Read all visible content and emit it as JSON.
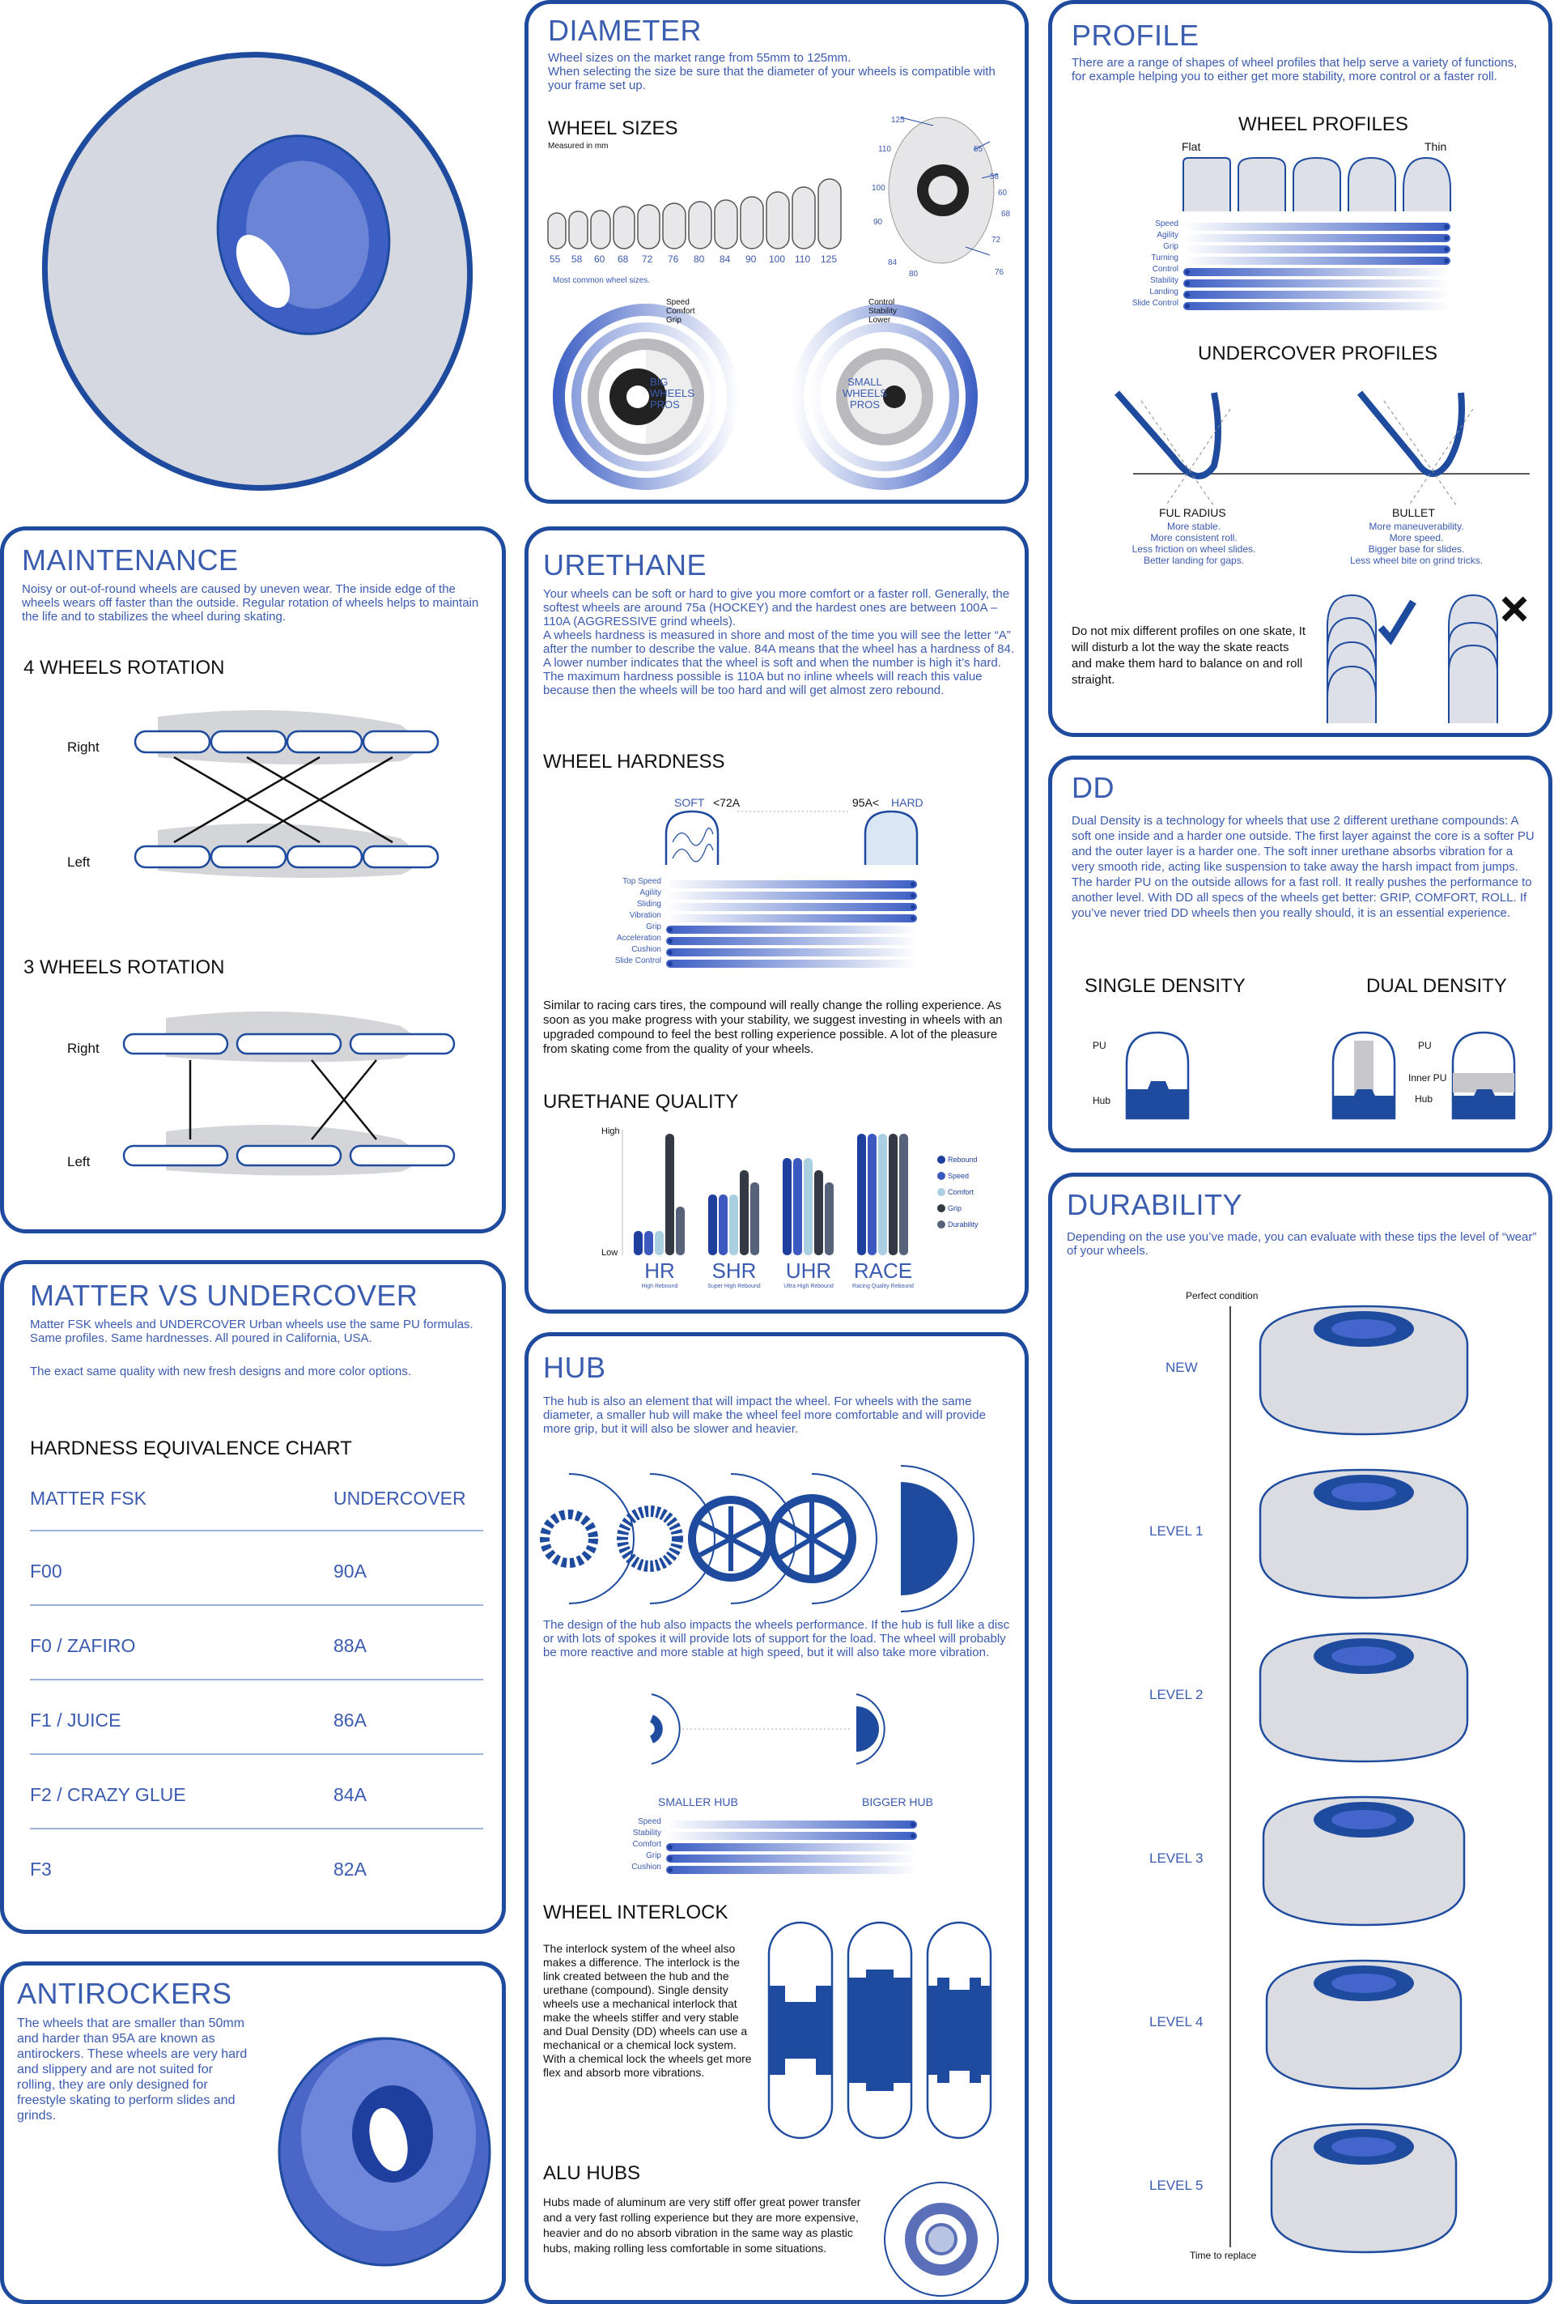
{
  "diameter": {
    "title": "DIAMETER",
    "text": "Wheel sizes on the market range from 55mm to 125mm.\nWhen selecting the size be sure that the diameter of your wheels is compatible with your frame set up.",
    "sizes_title": "WHEEL SIZES",
    "sizes_note": "Measured in mm",
    "sizes": [
      "55",
      "58",
      "60",
      "68",
      "72",
      "76",
      "80",
      "84",
      "90",
      "100",
      "110",
      "125"
    ],
    "common": "Most common wheel sizes.",
    "callout_sizes": [
      "125",
      "110",
      "100",
      "90",
      "84",
      "80",
      "76",
      "72",
      "68",
      "60",
      "58",
      "55"
    ],
    "big_pros": "BIG\nWHEELS\nPROS",
    "small_pros": "SMALL\nWHEELS\nPROS",
    "big_keys": [
      "Speed",
      "Comfort",
      "Grip"
    ],
    "small_keys": [
      "Control",
      "Stability",
      "Lower"
    ]
  },
  "profile": {
    "title": "PROFILE",
    "text": "There are a range of shapes of wheel profiles that help serve a variety of functions, for example helping you to either get more stability, more control or a faster roll.",
    "wheel_profiles": "WHEEL PROFILES",
    "flat": "Flat",
    "thin": "Thin",
    "bars": [
      "Speed",
      "Agility",
      "Grip",
      "Turning",
      "Control",
      "Stability",
      "Landing",
      "Slide Control"
    ],
    "undercover_profiles": "UNDERCOVER PROFILES",
    "ful_title": "FUL RADIUS",
    "ful_lines": [
      "More stable.",
      "More consistent roll.",
      "Less friction on wheel slides.",
      "Better landing for gaps."
    ],
    "bullet_title": "BULLET",
    "bullet_lines": [
      "More maneuverability.",
      "More speed.",
      "Bigger base for slides.",
      "Less wheel bite on grind tricks."
    ],
    "mix_text": "Do not mix different profiles on one skate, It will disturb a lot the way the skate reacts and make them hard to balance on and roll straight."
  },
  "maintenance": {
    "title": "MAINTENANCE",
    "text": "Noisy or out-of-round wheels are caused by uneven wear. The inside edge of the wheels wears off faster than the outside. Regular rotation of wheels helps to maintain the life and to stabilizes the wheel during skating.",
    "four": "4 WHEELS ROTATION",
    "three": "3 WHEELS ROTATION",
    "right": "Right",
    "left": "Left"
  },
  "urethane": {
    "title": "URETHANE",
    "text": "Your wheels can be soft or hard to give you more comfort or a faster roll. Generally, the softest wheels are around 75a (HOCKEY) and the hardest ones are between 100A – 110A (AGGRESSIVE grind wheels).\nA wheels hardness is measured in shore and most of the time you will see the letter “A” after the number to describe the value. 84A means that the wheel has a hardness of 84. A lower number indicates that the wheel is soft and when the number is high it’s hard.\nThe maximum hardness possible is 110A but no inline wheels will reach this value because then the wheels will be too hard and will get almost zero rebound.",
    "hardness_title": "WHEEL HARDNESS",
    "soft": "SOFT",
    "soft_val": "<72A",
    "hard_val": "95A<",
    "hard": "HARD",
    "bars": [
      "Top Speed",
      "Agility",
      "Sliding",
      "Vibration",
      "Grip",
      "Acceleration",
      "Cushion",
      "Slide Control"
    ],
    "text2": "Similar to racing cars tires, the compound will really change the rolling experience. As soon as you make progress with your stability, we suggest investing in wheels with an upgraded compound to feel the best rolling experience possible. A lot of the pleasure from skating come from the quality of your wheels.",
    "quality_title": "URETHANE QUALITY"
  },
  "chart_data": {
    "type": "bar",
    "title": "URETHANE QUALITY",
    "ylabel_top": "High",
    "ylabel_bottom": "Low",
    "categories": [
      "HR",
      "SHR",
      "UHR",
      "RACE"
    ],
    "category_subtitles": [
      "High Rebound",
      "Super High Rebound",
      "Ultra High Rebound",
      "Racing Quality Rebound"
    ],
    "series": [
      {
        "name": "Rebound",
        "color": "#1f3f9e",
        "values": [
          2,
          5,
          8,
          10
        ]
      },
      {
        "name": "Speed",
        "color": "#3c59c0",
        "values": [
          2,
          5,
          8,
          10
        ]
      },
      {
        "name": "Comfort",
        "color": "#a9cfe0",
        "values": [
          2,
          5,
          8,
          10
        ]
      },
      {
        "name": "Grip",
        "color": "#333a45",
        "values": [
          10,
          7,
          7,
          10
        ]
      },
      {
        "name": "Durability",
        "color": "#56627a",
        "values": [
          4,
          6,
          6,
          10
        ]
      }
    ],
    "ylim": [
      0,
      10
    ]
  },
  "dd": {
    "title": "DD",
    "text": "Dual Density is a technology for wheels that use 2 different urethane compounds: A soft one inside and a harder one outside. The first layer against the core is a softer PU and the outer layer is a harder one. The soft inner urethane absorbs vibration for a very smooth ride, acting like suspension to take away the harsh impact from jumps. The harder PU on the outside allows for a fast roll. It really pushes the performance to another level.  With DD all specs of the wheels get better: GRIP, COMFORT, ROLL. If you’ve never tried DD wheels then you really should, it is an essential experience.",
    "single": "SINGLE DENSITY",
    "dual": "DUAL DENSITY",
    "pu": "PU",
    "hub": "Hub",
    "inner_pu": "Inner PU"
  },
  "matter": {
    "title": "MATTER VS UNDERCOVER",
    "text": "Matter FSK wheels and UNDERCOVER Urban wheels use the same PU formulas. Same profiles. Same hardnesses. All poured in California, USA.",
    "text2": "The exact same quality with new fresh designs and more color options.",
    "chart_title": "HARDNESS EQUIVALENCE CHART",
    "col1": "MATTER FSK",
    "col2": "UNDERCOVER",
    "rows": [
      [
        "F00",
        "90A"
      ],
      [
        "F0 / ZAFIRO",
        "88A"
      ],
      [
        "F1 / JUICE",
        "86A"
      ],
      [
        "F2 / CRAZY GLUE",
        "84A"
      ],
      [
        "F3",
        "82A"
      ]
    ]
  },
  "hub": {
    "title": "HUB",
    "text": "The hub is also an element that will impact the wheel. For wheels with the same diameter, a smaller hub will make the wheel feel more comfortable and will provide   more grip, but it will also be slower and heavier.",
    "text2": "The design of the hub also impacts the wheels performance. If the hub is full like a disc or with lots of spokes it will provide lots of support for the load. The wheel will probably be more reactive and more stable at high speed, but it will also take more vibration.",
    "smaller": "SMALLER HUB",
    "bigger": "BIGGER HUB",
    "bars": [
      "Speed",
      "Stability",
      "Comfort",
      "Grip",
      "Cushion"
    ],
    "interlock_title": "WHEEL INTERLOCK",
    "interlock_text": "The interlock system of the wheel also makes a difference. The interlock is the link created between the hub and the urethane (compound). Single density wheels use a mechanical interlock that make the wheels stiffer and very stable and Dual Density (DD) wheels can use a mechanical or a chemical lock system. With a chemical lock the wheels get more flex and absorb more vibrations.",
    "alu_title": "ALU HUBS",
    "alu_text": "Hubs made of aluminum are very stiff offer great power transfer and a very fast rolling experience but they are more expensive, heavier and do no absorb vibration in the same way as plastic hubs, making rolling less comfortable in some situations."
  },
  "durability": {
    "title": "DURABILITY",
    "text": "Depending on the use you’ve made, you can evaluate with these tips the level of “wear” of your wheels.",
    "perfect": "Perfect condition",
    "replace": "Time to replace",
    "levels": [
      "NEW",
      "LEVEL 1",
      "LEVEL 2",
      "LEVEL 3",
      "LEVEL 4",
      "LEVEL 5"
    ]
  },
  "antirockers": {
    "title": "ANTIROCKERS",
    "text": "The wheels that are smaller than 50mm and harder than 95A are known as antirockers. These wheels are very hard and slippery and are not suited for rolling, they are only designed for freestyle skating to perform slides and grinds."
  },
  "colors": {
    "brand": "#1f4b9e",
    "text": "#3b5bb0",
    "fill": "#3d5fc4"
  }
}
